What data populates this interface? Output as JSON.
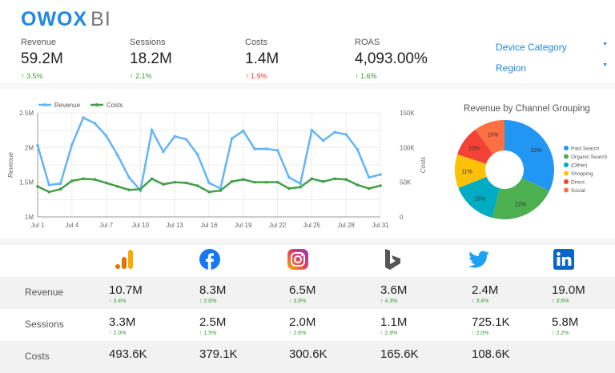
{
  "logo": {
    "brand": "OWOX",
    "suffix": "BI"
  },
  "kpis": [
    {
      "label": "Revenue",
      "value": "59.2M",
      "delta": "3.5%",
      "direction": "up"
    },
    {
      "label": "Sessions",
      "value": "18.2M",
      "delta": "2.1%",
      "direction": "up"
    },
    {
      "label": "Costs",
      "value": "1.4M",
      "delta": "1.9%",
      "direction": "up-bad"
    },
    {
      "label": "ROAS",
      "value": "4,093.00%",
      "delta": "1.6%",
      "direction": "up"
    }
  ],
  "filters": [
    {
      "label": "Device Category"
    },
    {
      "label": "Region"
    }
  ],
  "chart_data": [
    {
      "type": "line",
      "legend": [
        "Revenue",
        "Costs"
      ],
      "legend_placement": "top-left",
      "x": [
        "Jul 1",
        "Jul 2",
        "Jul 3",
        "Jul 4",
        "Jul 5",
        "Jul 6",
        "Jul 7",
        "Jul 8",
        "Jul 9",
        "Jul 10",
        "Jul 11",
        "Jul 12",
        "Jul 13",
        "Jul 14",
        "Jul 15",
        "Jul 16",
        "Jul 17",
        "Jul 18",
        "Jul 19",
        "Jul 20",
        "Jul 21",
        "Jul 22",
        "Jul 23",
        "Jul 24",
        "Jul 25",
        "Jul 26",
        "Jul 27",
        "Jul 28",
        "Jul 29",
        "Jul 30",
        "Jul 31"
      ],
      "x_ticks": [
        "Jul 1",
        "Jul 4",
        "Jul 7",
        "Jul 10",
        "Jul 13",
        "Jul 16",
        "Jul 19",
        "Jul 22",
        "Jul 25",
        "Jul 28",
        "Jul 31"
      ],
      "series": [
        {
          "name": "Revenue",
          "axis": "left",
          "color": "#64b5f6",
          "values": [
            2.03,
            1.46,
            1.48,
            2.04,
            2.43,
            2.35,
            2.17,
            1.89,
            1.57,
            1.38,
            2.25,
            1.94,
            2.16,
            2.12,
            1.9,
            1.49,
            1.41,
            2.13,
            2.24,
            1.98,
            1.98,
            1.96,
            1.57,
            1.48,
            2.25,
            2.1,
            2.22,
            2.19,
            1.97,
            1.57,
            1.61
          ]
        },
        {
          "name": "Costs",
          "axis": "right",
          "color": "#43a047",
          "values": [
            44,
            36,
            40,
            52,
            55,
            54,
            49,
            44,
            39,
            40,
            55,
            47,
            50,
            49,
            45,
            36,
            38,
            51,
            54,
            50,
            50,
            50,
            41,
            43,
            55,
            51,
            55,
            54,
            46,
            41,
            45
          ]
        }
      ],
      "ylabel": "Revenue",
      "ylim": [
        1,
        2.5
      ],
      "yticks": [
        "1M",
        "1.5M",
        "2M",
        "2.5M"
      ],
      "y2label": "Costs",
      "y2lim": [
        0,
        150
      ],
      "y2ticks": [
        "0",
        "50K",
        "100K",
        "150K"
      ],
      "grid": true
    },
    {
      "type": "pie",
      "title": "Revenue by Channel Grouping",
      "donut": true,
      "legend_placement": "right",
      "slices": [
        {
          "name": "Paid Search",
          "value": 32,
          "label": "32%",
          "color": "#2196f3"
        },
        {
          "name": "Organic Search",
          "value": 22,
          "label": "22%",
          "color": "#4caf50"
        },
        {
          "name": "(Other)",
          "value": 15,
          "label": "15%",
          "color": "#00acc1"
        },
        {
          "name": "Shopping",
          "value": 11,
          "label": "11%",
          "color": "#ffc107"
        },
        {
          "name": "Direct",
          "value": 10,
          "label": "10%",
          "color": "#f44336"
        },
        {
          "name": "Social",
          "value": 10,
          "label": "10%",
          "color": "#ff7043"
        }
      ]
    }
  ],
  "platforms": [
    "google-analytics-icon",
    "facebook-icon",
    "instagram-icon",
    "bing-icon",
    "twitter-icon",
    "linkedin-icon"
  ],
  "table": {
    "rows": [
      {
        "label": "Revenue",
        "cells": [
          {
            "value": "10.7M",
            "delta": "3.4%"
          },
          {
            "value": "8.3M",
            "delta": "2.8%"
          },
          {
            "value": "6.5M",
            "delta": "3.9%"
          },
          {
            "value": "3.6M",
            "delta": "4.3%"
          },
          {
            "value": "2.4M",
            "delta": "3.4%"
          },
          {
            "value": "19.0M",
            "delta": "3.6%"
          }
        ]
      },
      {
        "label": "Sessions",
        "cells": [
          {
            "value": "3.3M",
            "delta": "2.0%"
          },
          {
            "value": "2.5M",
            "delta": "1.5%"
          },
          {
            "value": "2.0M",
            "delta": "2.6%"
          },
          {
            "value": "1.1M",
            "delta": "2.9%"
          },
          {
            "value": "725.1K",
            "delta": "2.0%"
          },
          {
            "value": "5.8M",
            "delta": "2.2%"
          }
        ]
      },
      {
        "label": "Costs",
        "cells": [
          {
            "value": "493.6K"
          },
          {
            "value": "379.1K"
          },
          {
            "value": "300.6K"
          },
          {
            "value": "165.6K"
          },
          {
            "value": "108.6K"
          }
        ]
      }
    ]
  }
}
